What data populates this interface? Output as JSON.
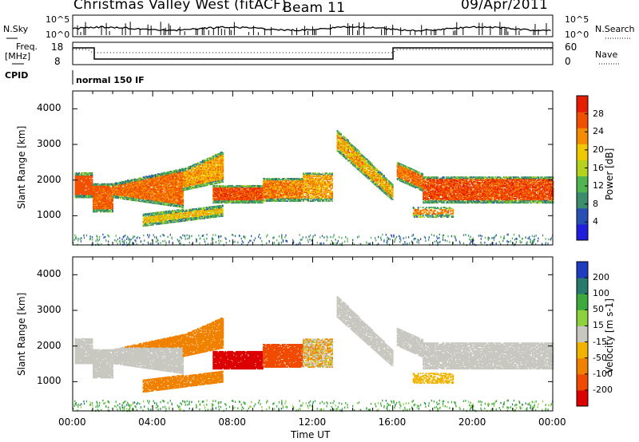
{
  "header": {
    "station": "Christmas Valley West (fitACF)",
    "beam": "Beam 11",
    "date": "09/Apr/2011"
  },
  "top_panels": {
    "nsky_label": "N.Sky",
    "nsearch_label": "N.Search",
    "nsky_ticks": [
      "10^5",
      "10^0"
    ],
    "nsearch_ticks": [
      "10^5",
      "10^0"
    ],
    "freq_label_1": "Freq.",
    "freq_label_2": "[MHz]",
    "freq_ticks": [
      "18",
      "8"
    ],
    "nave_label": "Nave",
    "nave_ticks": [
      "60",
      "0"
    ],
    "cpid_label": "CPID",
    "cpid_text": "normal 150 IF"
  },
  "chart_data": [
    {
      "type": "heatmap",
      "title": "Power",
      "ylabel": "Slant Range [km]",
      "xlabel": "",
      "xlim": [
        "00:00",
        "24:00"
      ],
      "ylim": [
        180,
        4500
      ],
      "yticks": [
        "1000",
        "2000",
        "3000",
        "4000"
      ],
      "colorbar_label": "Power [dB]",
      "colorbar_ticks": [
        "4",
        "8",
        "12",
        "16",
        "20",
        "24",
        "28"
      ],
      "colorbar_range": [
        0,
        32
      ]
    },
    {
      "type": "heatmap",
      "title": "Velocity",
      "ylabel": "Slant Range [km]",
      "xlabel": "Time UT",
      "xlim": [
        "00:00",
        "24:00"
      ],
      "ylim": [
        180,
        4500
      ],
      "yticks": [
        "1000",
        "2000",
        "3000",
        "4000"
      ],
      "xticks": [
        "00:00",
        "04:00",
        "08:00",
        "12:00",
        "16:00",
        "20:00",
        "00:00"
      ],
      "colorbar_label": "Velocity [m s-1]",
      "colorbar_ticks": [
        "200",
        "100",
        "50",
        "15",
        "-15",
        "-50",
        "-100",
        "-200"
      ]
    }
  ],
  "colors": {
    "power": [
      "#1e1edc",
      "#2850b4",
      "#3c8c6e",
      "#50b450",
      "#b4d21e",
      "#f0c800",
      "#f58c00",
      "#f05000",
      "#e61e00"
    ],
    "velocity": [
      "#1e3cbe",
      "#287a6e",
      "#3caa3c",
      "#8cd23c",
      "#c8c8c0",
      "#f0b400",
      "#f08200",
      "#f04b00",
      "#dc0000"
    ]
  }
}
